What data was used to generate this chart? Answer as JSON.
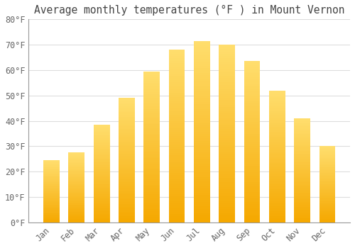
{
  "title": "Average monthly temperatures (°F ) in Mount Vernon",
  "months": [
    "Jan",
    "Feb",
    "Mar",
    "Apr",
    "May",
    "Jun",
    "Jul",
    "Aug",
    "Sep",
    "Oct",
    "Nov",
    "Dec"
  ],
  "values": [
    24.5,
    27.5,
    38.5,
    49.0,
    59.5,
    68.0,
    71.5,
    70.0,
    63.5,
    52.0,
    41.0,
    30.0
  ],
  "bar_color_bottom": "#F5A800",
  "bar_color_top": "#FFDE6E",
  "ylim": [
    0,
    80
  ],
  "yticks": [
    0,
    10,
    20,
    30,
    40,
    50,
    60,
    70,
    80
  ],
  "ytick_labels": [
    "0°F",
    "10°F",
    "20°F",
    "30°F",
    "40°F",
    "50°F",
    "60°F",
    "70°F",
    "80°F"
  ],
  "background_color": "#FFFFFF",
  "grid_color": "#DDDDDD",
  "title_fontsize": 10.5,
  "tick_fontsize": 8.5,
  "font_family": "monospace"
}
